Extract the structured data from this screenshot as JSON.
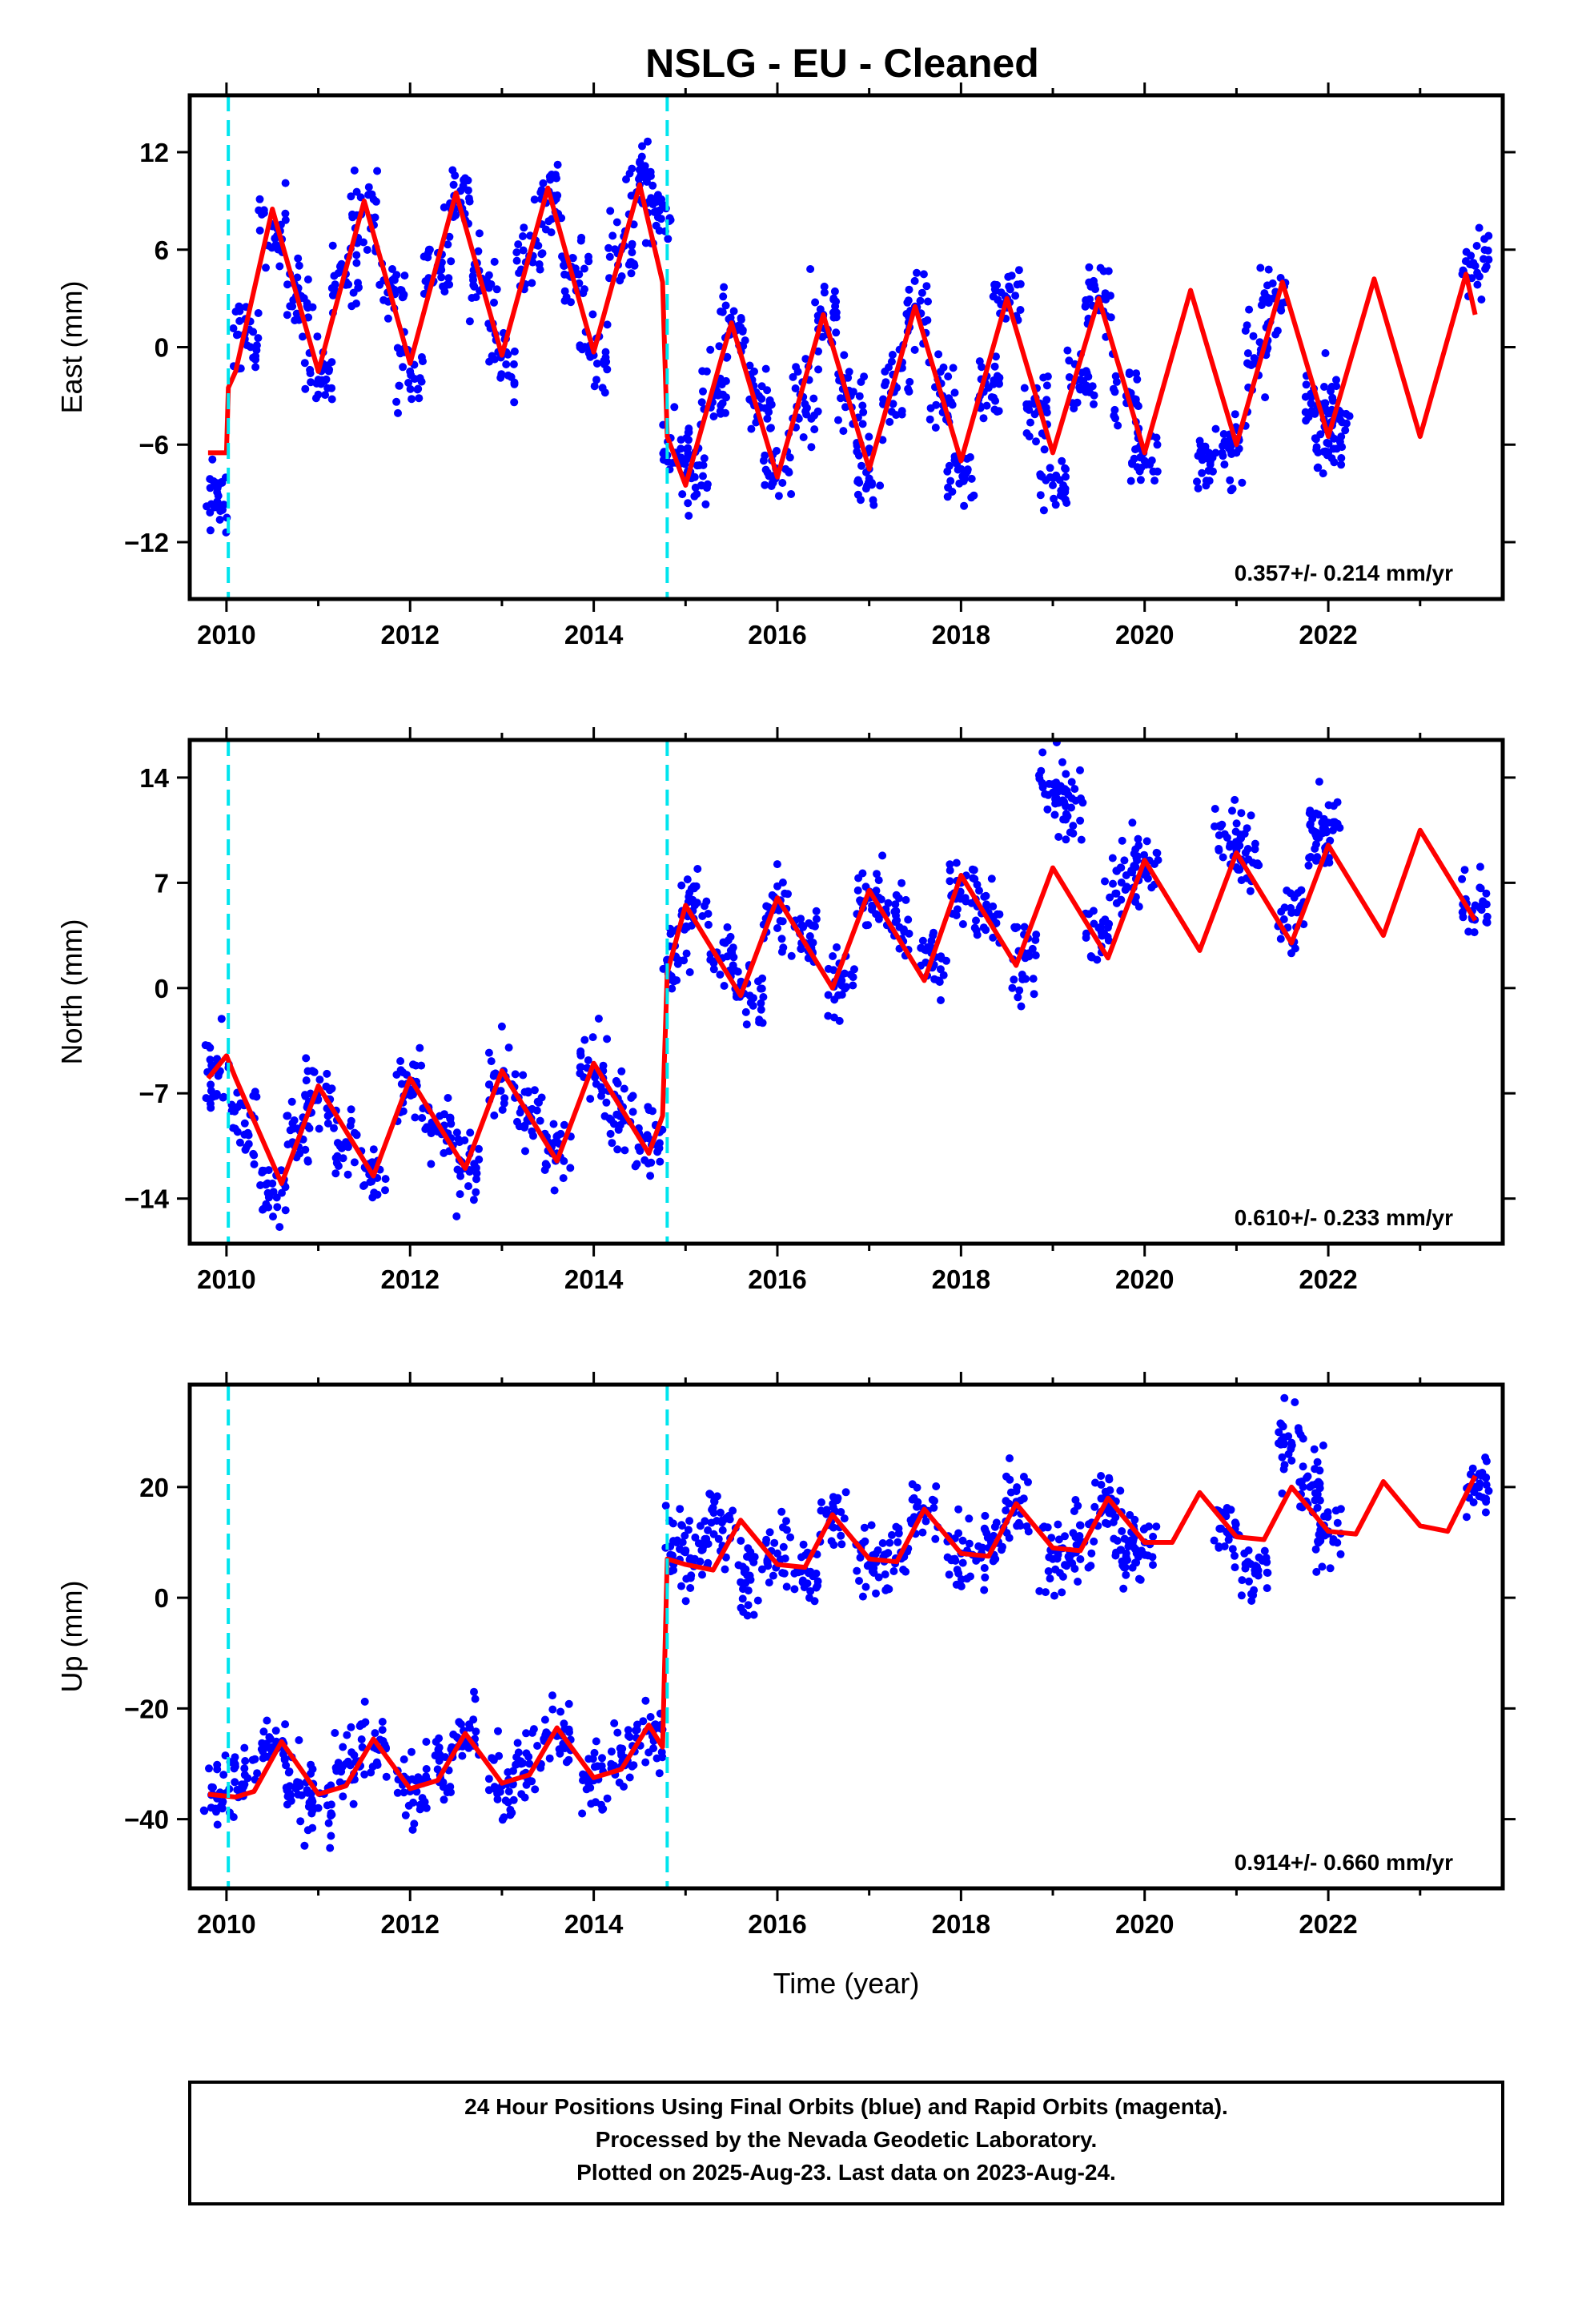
{
  "title": "NSLG  - EU - Cleaned",
  "colors": {
    "data": "#0000ff",
    "model": "#ff0000",
    "breaks": "#00e5ee",
    "frame": "#000000"
  },
  "footer": [
    "24 Hour Positions Using Final Orbits (blue) and Rapid Orbits (magenta).",
    "Processed by the Nevada Geodetic Laboratory.",
    "Plotted on 2025-Aug-23. Last data on 2023-Aug-24."
  ],
  "chart_data": [
    {
      "type": "scatter",
      "ylabel": "East (mm)",
      "xlabel": "",
      "rate_label": "0.357+/- 0.214 mm/yr",
      "xlim": [
        2009.6,
        2023.9
      ],
      "ylim": [
        -15.5,
        15.5
      ],
      "xticks": [
        "2010",
        "2012",
        "2014",
        "2016",
        "2018",
        "2020",
        "2022"
      ],
      "yticks": [
        "12",
        "6",
        "0",
        "-6",
        "-12"
      ],
      "yticks_values": [
        12,
        6,
        0,
        -6,
        -12
      ],
      "breaks": [
        2010.02,
        2014.8
      ],
      "series": [
        {
          "kind": "points",
          "x": [
            2009.9,
            2010.2,
            2010.5,
            2010.8,
            2011.0,
            2011.3,
            2011.5,
            2011.8,
            2012.0,
            2012.3,
            2012.5,
            2012.8,
            2013.0,
            2013.3,
            2013.5,
            2013.8,
            2014.0,
            2014.3,
            2014.5,
            2014.7,
            2014.9,
            2015.1,
            2015.3,
            2015.5,
            2015.8,
            2016.0,
            2016.3,
            2016.5,
            2016.8,
            2017.0,
            2017.3,
            2017.5,
            2017.8,
            2018.0,
            2018.3,
            2018.5,
            2018.8,
            2019.0,
            2019.3,
            2019.5,
            2019.8,
            2020.0,
            2020.7,
            2021.0,
            2021.2,
            2021.4,
            2021.9,
            2022.0,
            2022.1,
            2023.6
          ],
          "y": [
            -9.5,
            0.5,
            7.5,
            3.0,
            -2.0,
            4.5,
            8.5,
            3.5,
            -1.5,
            5.0,
            9.0,
            4.0,
            -0.5,
            5.5,
            9.5,
            4.5,
            -0.5,
            6.0,
            10.0,
            8.0,
            -6.5,
            -8.0,
            -3.0,
            1.5,
            -3.0,
            -7.5,
            -3.5,
            2.0,
            -3.0,
            -7.5,
            -2.5,
            2.5,
            -3.0,
            -7.5,
            -2.5,
            3.0,
            -3.5,
            -8.5,
            -2.0,
            3.0,
            -3.0,
            -7.0,
            -6.5,
            -6.5,
            -1.0,
            3.0,
            -3.5,
            -6.5,
            -4.0,
            5.0
          ]
        },
        {
          "kind": "line",
          "x": [
            2009.8,
            2010.0,
            2010.02,
            2010.1,
            2010.5,
            2011.0,
            2011.5,
            2012.0,
            2012.5,
            2013.0,
            2013.5,
            2014.0,
            2014.5,
            2014.75,
            2014.8,
            2015.0,
            2015.5,
            2016.0,
            2016.5,
            2017.0,
            2017.5,
            2018.0,
            2018.5,
            2019.0,
            2019.5,
            2020.0,
            2020.5,
            2021.0,
            2021.5,
            2022.0,
            2022.5,
            2023.0,
            2023.5,
            2023.6
          ],
          "y": [
            -6.5,
            -6.5,
            -2.5,
            -1.5,
            8.5,
            -1.5,
            9.0,
            -1.0,
            9.5,
            -0.5,
            9.8,
            -0.3,
            10.0,
            4.0,
            -5.5,
            -8.5,
            1.5,
            -8.0,
            2.0,
            -7.5,
            2.5,
            -7.0,
            3.0,
            -6.5,
            3.0,
            -6.5,
            3.5,
            -6.0,
            4.0,
            -5.5,
            4.2,
            -5.5,
            4.5,
            2.0
          ]
        }
      ]
    },
    {
      "type": "scatter",
      "ylabel": "North (mm)",
      "xlabel": "",
      "rate_label": "0.610+/- 0.233 mm/yr",
      "xlim": [
        2009.6,
        2023.9
      ],
      "ylim": [
        -17,
        16.5
      ],
      "xticks": [
        "2010",
        "2012",
        "2014",
        "2016",
        "2018",
        "2020",
        "2022"
      ],
      "yticks": [
        "14",
        "7",
        "0",
        "-7",
        "-14"
      ],
      "yticks_values": [
        14,
        7,
        0,
        -7,
        -14
      ],
      "breaks": [
        2010.02,
        2014.8
      ],
      "series": [
        {
          "kind": "points",
          "x": [
            2009.9,
            2010.2,
            2010.5,
            2010.8,
            2011.0,
            2011.3,
            2011.6,
            2012.0,
            2012.3,
            2012.6,
            2013.0,
            2013.3,
            2013.6,
            2014.0,
            2014.3,
            2014.6,
            2014.9,
            2015.1,
            2015.4,
            2015.7,
            2016.0,
            2016.3,
            2016.7,
            2017.0,
            2017.3,
            2017.7,
            2018.0,
            2018.3,
            2018.7,
            2019.0,
            2019.2,
            2019.5,
            2019.8,
            2020.0,
            2020.9,
            2021.1,
            2021.6,
            2021.9,
            2022.0,
            2023.6
          ],
          "y": [
            -5.0,
            -9.0,
            -13.0,
            -9.5,
            -7.0,
            -10.5,
            -12.5,
            -7.0,
            -9.5,
            -12.0,
            -6.0,
            -8.5,
            -11.0,
            -5.5,
            -8.0,
            -10.0,
            2.0,
            5.5,
            2.0,
            -0.5,
            5.5,
            3.0,
            0.5,
            6.0,
            4.5,
            1.5,
            7.0,
            5.0,
            2.0,
            13.0,
            12.0,
            4.0,
            7.5,
            8.0,
            10.0,
            9.0,
            5.0,
            10.0,
            11.0,
            5.5
          ]
        },
        {
          "kind": "line",
          "x": [
            2009.8,
            2010.0,
            2010.1,
            2010.6,
            2011.0,
            2011.6,
            2012.0,
            2012.6,
            2013.0,
            2013.6,
            2014.0,
            2014.6,
            2014.75,
            2014.8,
            2015.0,
            2015.6,
            2016.0,
            2016.6,
            2017.0,
            2017.6,
            2018.0,
            2018.6,
            2019.0,
            2019.6,
            2020.0,
            2020.6,
            2021.0,
            2021.6,
            2022.0,
            2022.6,
            2023.0,
            2023.6
          ],
          "y": [
            -6.0,
            -4.5,
            -6.0,
            -13.0,
            -6.5,
            -12.5,
            -6.0,
            -12.0,
            -5.5,
            -11.5,
            -5.0,
            -11.0,
            -8.5,
            1.0,
            5.5,
            -0.5,
            6.0,
            0.0,
            6.5,
            0.5,
            7.5,
            1.5,
            8.0,
            2.0,
            8.5,
            2.5,
            9.0,
            3.0,
            9.5,
            3.5,
            10.5,
            4.5
          ]
        }
      ]
    },
    {
      "type": "scatter",
      "ylabel": "Up (mm)",
      "xlabel": "Time (year)",
      "rate_label": "0.914+/- 0.660 mm/yr",
      "xlim": [
        2009.6,
        2023.9
      ],
      "ylim": [
        -52.5,
        38.5
      ],
      "xticks": [
        "2010",
        "2012",
        "2014",
        "2016",
        "2018",
        "2020",
        "2022"
      ],
      "yticks": [
        "20",
        "0",
        "-20",
        "-40"
      ],
      "yticks_values": [
        20,
        0,
        -20,
        -40
      ],
      "breaks": [
        2010.02,
        2014.8
      ],
      "series": [
        {
          "kind": "points",
          "x": [
            2009.9,
            2010.2,
            2010.5,
            2010.8,
            2011.0,
            2011.3,
            2011.6,
            2012.0,
            2012.3,
            2012.6,
            2013.0,
            2013.3,
            2013.6,
            2014.0,
            2014.3,
            2014.6,
            2014.9,
            2015.1,
            2015.4,
            2015.7,
            2016.0,
            2016.3,
            2016.6,
            2017.0,
            2017.3,
            2017.6,
            2018.0,
            2018.3,
            2018.6,
            2019.0,
            2019.3,
            2019.6,
            2019.8,
            2020.0,
            2020.9,
            2021.2,
            2021.6,
            2021.8,
            2022.0,
            2023.6
          ],
          "y": [
            -36.0,
            -32.0,
            -27.0,
            -34.0,
            -38.0,
            -30.0,
            -27.0,
            -35.0,
            -31.0,
            -26.0,
            -34.0,
            -30.0,
            -25.0,
            -33.0,
            -28.0,
            -24.0,
            10.0,
            7.0,
            14.0,
            4.0,
            8.0,
            5.0,
            15.0,
            6.0,
            7.0,
            15.0,
            8.0,
            9.0,
            17.0,
            7.0,
            10.0,
            18.0,
            8.0,
            10.0,
            12.0,
            5.0,
            28.0,
            20.0,
            12.0,
            20.0
          ]
        },
        {
          "kind": "line",
          "x": [
            2009.8,
            2010.1,
            2010.3,
            2010.6,
            2011.0,
            2011.3,
            2011.6,
            2012.0,
            2012.3,
            2012.6,
            2013.0,
            2013.3,
            2013.6,
            2014.0,
            2014.3,
            2014.6,
            2014.75,
            2014.8,
            2015.0,
            2015.3,
            2015.6,
            2016.0,
            2016.3,
            2016.6,
            2017.0,
            2017.3,
            2017.6,
            2018.0,
            2018.3,
            2018.6,
            2019.0,
            2019.3,
            2019.6,
            2020.0,
            2020.3,
            2020.6,
            2021.0,
            2021.3,
            2021.6,
            2022.0,
            2022.3,
            2022.6,
            2023.0,
            2023.3,
            2023.6
          ],
          "y": [
            -35.5,
            -36.0,
            -35.0,
            -26.0,
            -35.5,
            -34.0,
            -25.5,
            -34.5,
            -33.0,
            -24.5,
            -33.5,
            -32.0,
            -23.5,
            -32.5,
            -31.0,
            -23.0,
            -27.0,
            7.0,
            6.0,
            5.0,
            14.0,
            6.0,
            5.5,
            15.0,
            7.0,
            6.5,
            16.0,
            8.0,
            7.5,
            17.0,
            9.0,
            8.5,
            18.0,
            10.0,
            10.0,
            19.0,
            11.0,
            10.5,
            20.0,
            12.0,
            11.5,
            21.0,
            13.0,
            12.0,
            22.0
          ]
        }
      ]
    }
  ]
}
